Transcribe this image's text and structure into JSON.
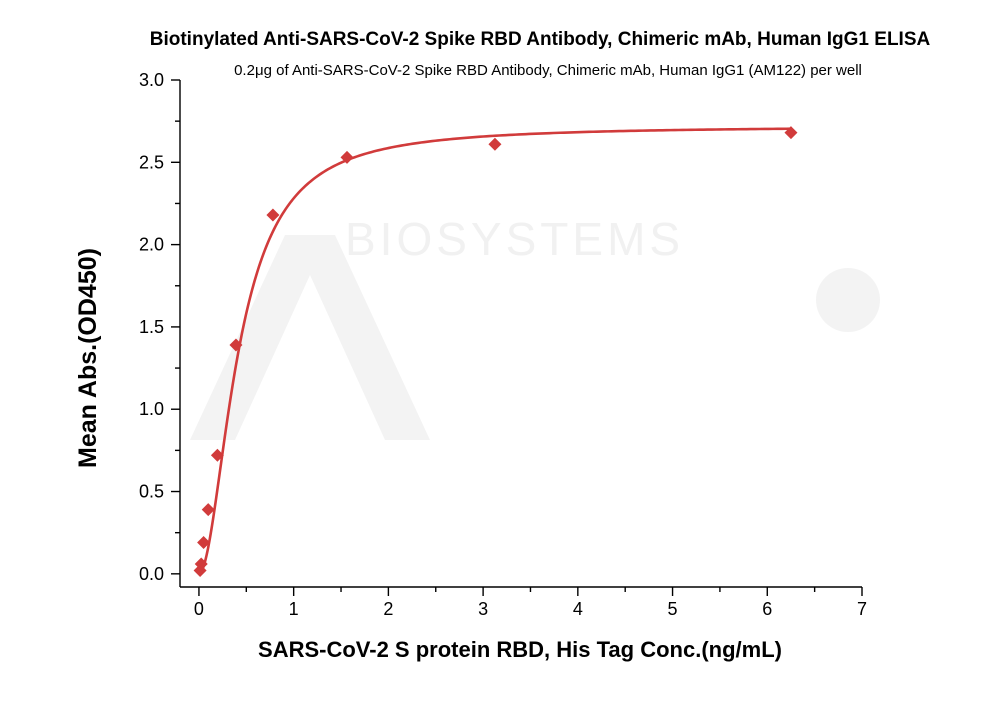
{
  "chart_data": {
    "type": "scatter",
    "title": "Biotinylated Anti-SARS-CoV-2 Spike RBD Antibody, Chimeric mAb, Human IgG1 ELISA",
    "subtitle": "0.2μg of Anti-SARS-CoV-2 Spike RBD Antibody, Chimeric mAb, Human IgG1 (AM122) per well",
    "xlabel": "SARS-CoV-2 S protein RBD, His Tag  Conc.(ng/mL)",
    "ylabel": "Mean Abs.(OD450)",
    "xlim": [
      -0.2,
      7
    ],
    "ylim": [
      -0.08,
      3.0
    ],
    "x_ticks": [
      0,
      1,
      2,
      3,
      4,
      5,
      6,
      7
    ],
    "y_ticks": [
      0.0,
      0.5,
      1.0,
      1.5,
      2.0,
      2.5,
      3.0
    ],
    "x_tick_labels": [
      "0",
      "1",
      "2",
      "3",
      "4",
      "5",
      "6",
      "7"
    ],
    "y_tick_labels": [
      "0.0",
      "0.5",
      "1.0",
      "1.5",
      "2.0",
      "2.5",
      "3.0"
    ],
    "grid": false,
    "series": [
      {
        "color": "#d13b3b",
        "marker": "diamond",
        "x": [
          0.012,
          0.024,
          0.049,
          0.098,
          0.195,
          0.391,
          0.781,
          1.563,
          3.125,
          6.25
        ],
        "y": [
          0.02,
          0.06,
          0.19,
          0.39,
          0.72,
          1.39,
          2.18,
          2.53,
          2.61,
          2.68
        ],
        "fit": "4PL"
      }
    ],
    "watermark": "ACRO BIOSYSTEMS"
  }
}
